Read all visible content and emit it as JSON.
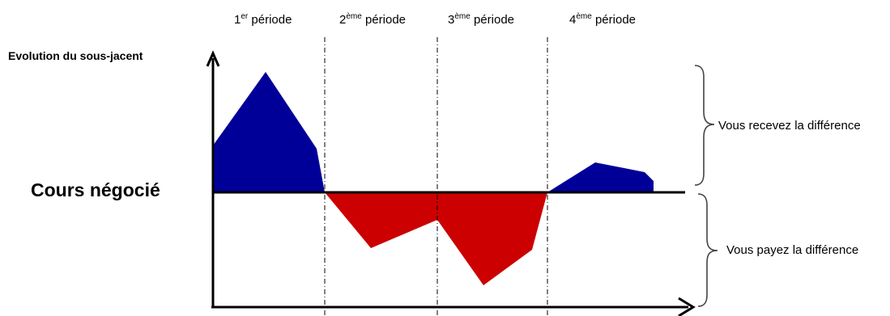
{
  "periods": [
    {
      "num": "1",
      "sup": "er",
      "word": "période"
    },
    {
      "num": "2",
      "sup": "ème",
      "word": "période"
    },
    {
      "num": "3",
      "sup": "ème",
      "word": "période"
    },
    {
      "num": "4",
      "sup": "ème",
      "word": "période"
    }
  ],
  "y_axis_title": "Evolution du sous-jacent",
  "strike_label": "Cours négocié",
  "receive_label": "Vous recevez la différence",
  "pay_label": "Vous payez la différence",
  "colors": {
    "gain": "#000099",
    "loss": "#cc0000",
    "axis": "#000000"
  }
}
